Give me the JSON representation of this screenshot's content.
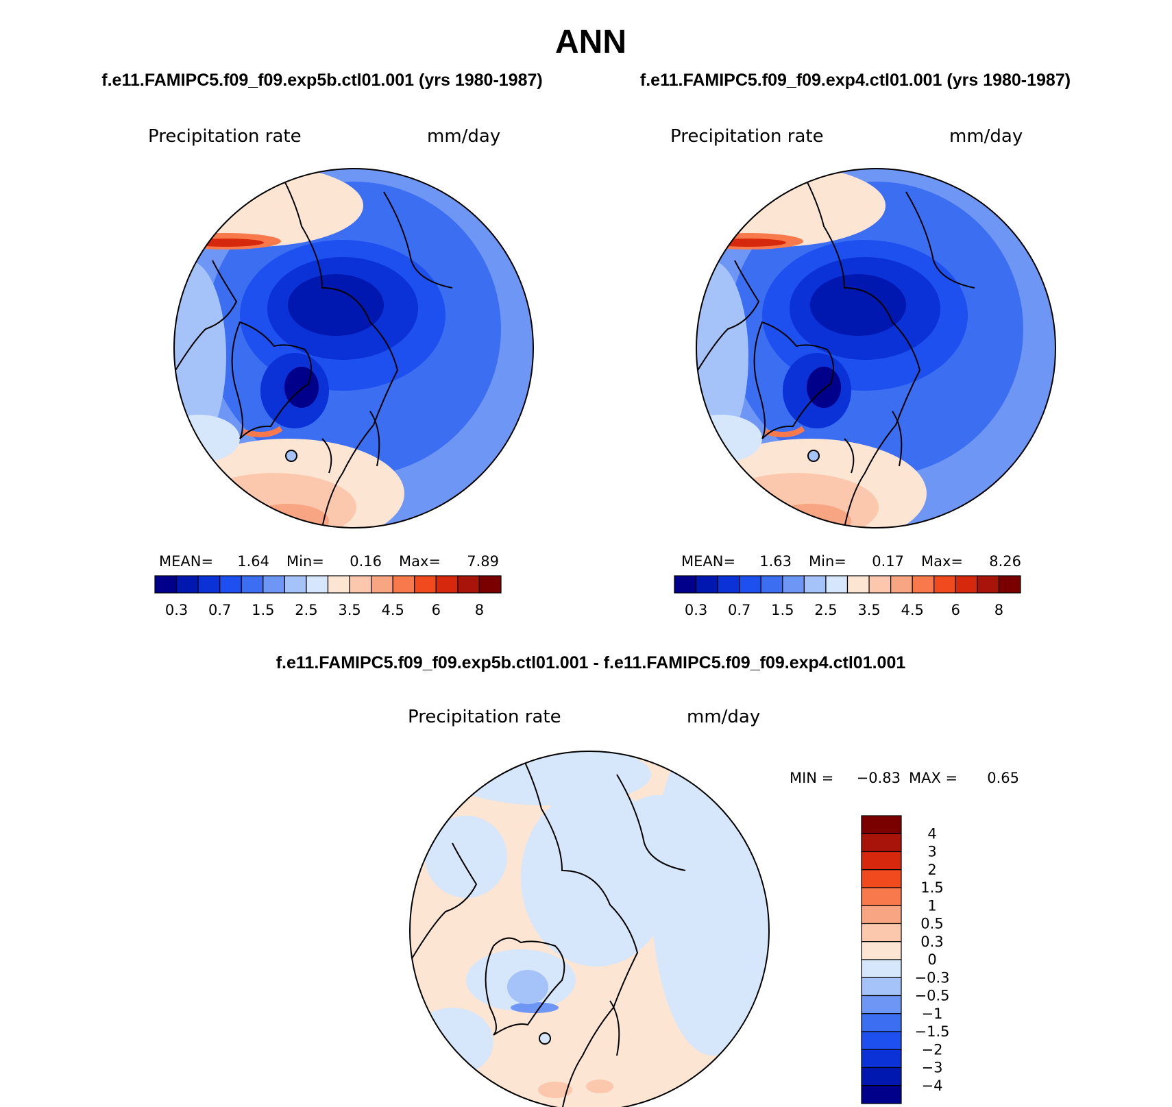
{
  "page": {
    "season": "ANN",
    "subtitle_left": "f.e11.FAMIPC5.f09_f09.exp5b.ctl01.001 (yrs 1980-1987)",
    "subtitle_right": "f.e11.FAMIPC5.f09_f09.exp4.ctl01.001 (yrs 1980-1987)",
    "diff_title": "f.e11.FAMIPC5.f09_f09.exp5b.ctl01.001 - f.e11.FAMIPC5.f09_f09.exp4.ctl01.001"
  },
  "colors": {
    "abs_palette": [
      "#00008b",
      "#0018b0",
      "#0a32d6",
      "#1e50f0",
      "#3c6ef2",
      "#6e96f5",
      "#a5c3f8",
      "#d6e6fb",
      "#fde5d3",
      "#fbc8ad",
      "#f8a583",
      "#f87a4c",
      "#f24a1f",
      "#d6280d",
      "#a8140a",
      "#7a0000"
    ],
    "diff_palette": [
      "#00008b",
      "#0018b0",
      "#0a32d6",
      "#1e50f0",
      "#3c6ef2",
      "#6e96f5",
      "#a5c3f8",
      "#d6e6fb",
      "#fde5d3",
      "#fbc8ad",
      "#f8a583",
      "#f87a4c",
      "#f24a1f",
      "#d6280d",
      "#a8140a",
      "#7a0000"
    ]
  },
  "chart_data": [
    {
      "type": "heatmap",
      "panel": "top-left",
      "projection": "polar stereographic (north pole)",
      "title": "Precipitation rate",
      "units": "mm/day",
      "stats": {
        "mean_label": "MEAN=",
        "mean": "1.64",
        "min_label": "Min=",
        "min": "0.16",
        "max_label": "Max=",
        "max": "7.89"
      },
      "colorbar_ticks": [
        "0.3",
        "0.7",
        "1.5",
        "2.5",
        "3.5",
        "4.5",
        "6",
        "8"
      ],
      "levels": [
        0.2,
        0.3,
        0.5,
        0.7,
        1,
        1.5,
        2,
        2.5,
        3,
        3.5,
        4,
        4.5,
        5,
        6,
        7,
        8
      ],
      "legend_position": "bottom"
    },
    {
      "type": "heatmap",
      "panel": "top-right",
      "projection": "polar stereographic (north pole)",
      "title": "Precipitation rate",
      "units": "mm/day",
      "stats": {
        "mean_label": "MEAN=",
        "mean": "1.63",
        "min_label": "Min=",
        "min": "0.17",
        "max_label": "Max=",
        "max": "8.26"
      },
      "colorbar_ticks": [
        "0.3",
        "0.7",
        "1.5",
        "2.5",
        "3.5",
        "4.5",
        "6",
        "8"
      ],
      "levels": [
        0.2,
        0.3,
        0.5,
        0.7,
        1,
        1.5,
        2,
        2.5,
        3,
        3.5,
        4,
        4.5,
        5,
        6,
        7,
        8
      ],
      "legend_position": "bottom"
    },
    {
      "type": "heatmap",
      "panel": "bottom",
      "projection": "polar stereographic (north pole)",
      "title": "Precipitation rate",
      "units": "mm/day",
      "stats": {
        "min_label": "MIN =",
        "min": "−0.83",
        "max_label": "MAX =",
        "max": "0.65"
      },
      "colorbar_ticks": [
        "4",
        "3",
        "2",
        "1.5",
        "1",
        "0.5",
        "0.3",
        "0",
        "−0.3",
        "−0.5",
        "−1",
        "−1.5",
        "−2",
        "−3",
        "−4"
      ],
      "legend_position": "right"
    }
  ]
}
